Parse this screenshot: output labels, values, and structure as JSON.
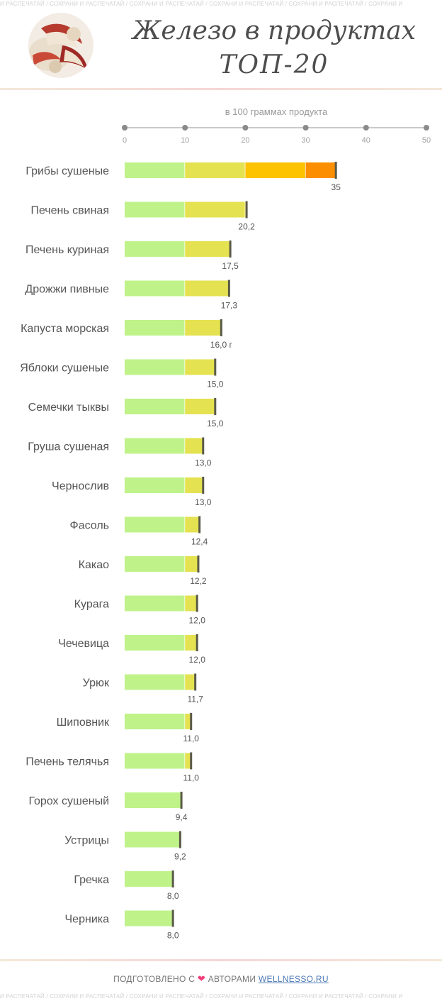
{
  "watermark": {
    "top": "И РАСПЕЧАТАЙ / СОХРАНИ И РАСПЕЧАТАЙ / СОХРАНИ И РАСПЕЧАТАЙ / СОХРАНИ И РАСПЕЧАТАЙ / СОХРАНИ И РАСПЕЧАТАЙ / СОХРАНИ И",
    "bottom": "И РАСПЕЧАТАЙ / СОХРАНИ И РАСПЕЧАТАЙ / СОХРАНИ И РАСПЕЧАТАЙ / СОХРАНИ И РАСПЕЧАТАЙ / СОХРАНИ И РАСПЕЧАТАЙ / СОХРАНИ И"
  },
  "header": {
    "title_line1": "Железо в продуктах",
    "title_line2": "ТОП-20",
    "avatar_icon": "dried-apple-photo"
  },
  "chart_data": {
    "type": "bar",
    "orientation": "horizontal",
    "title": "Железо в продуктах ТОП-20",
    "xlabel": "в 100 граммах продукта",
    "xlim": [
      0,
      50
    ],
    "xticks": [
      "0",
      "10",
      "20",
      "30",
      "40",
      "50"
    ],
    "grid": false,
    "segment_colors": [
      "#bff38a",
      "#e4e250",
      "#fdc200",
      "#fc8e01"
    ],
    "segment_breaks": [
      10,
      20,
      30,
      50
    ],
    "categories": [
      "Грибы сушеные",
      "Печень свиная",
      "Печень куриная",
      "Дрожжи пивные",
      "Капуста морская",
      "Яблоки сушеные",
      "Семечки тыквы",
      "Груша сушеная",
      "Чернослив",
      "Фасоль",
      "Какао",
      "Курага",
      "Чечевица",
      "Урюк",
      "Шиповник",
      "Печень телячья",
      "Горох сушеный",
      "Устрицы",
      "Гречка",
      "Черника"
    ],
    "values": [
      35,
      20.2,
      17.5,
      17.3,
      16.0,
      15.0,
      15.0,
      13.0,
      13.0,
      12.4,
      12.2,
      12.0,
      12.0,
      11.7,
      11.0,
      11.0,
      9.4,
      9.2,
      8.0,
      8.0
    ],
    "value_labels": [
      "35",
      "20,2",
      "17,5",
      "17,3",
      "16,0 г",
      "15,0",
      "15,0",
      "13,0",
      "13,0",
      "12,4",
      "12,2",
      "12,0",
      "12,0",
      "11,7",
      "11,0",
      "11,0",
      "9,4",
      "9,2",
      "8,0",
      "8,0"
    ]
  },
  "footer": {
    "prefix": "ПОДГОТОВЛЕНО С",
    "heart_icon": "heart-icon",
    "middle": "АВТОРАМИ",
    "link": "WELLNESSO.RU"
  }
}
